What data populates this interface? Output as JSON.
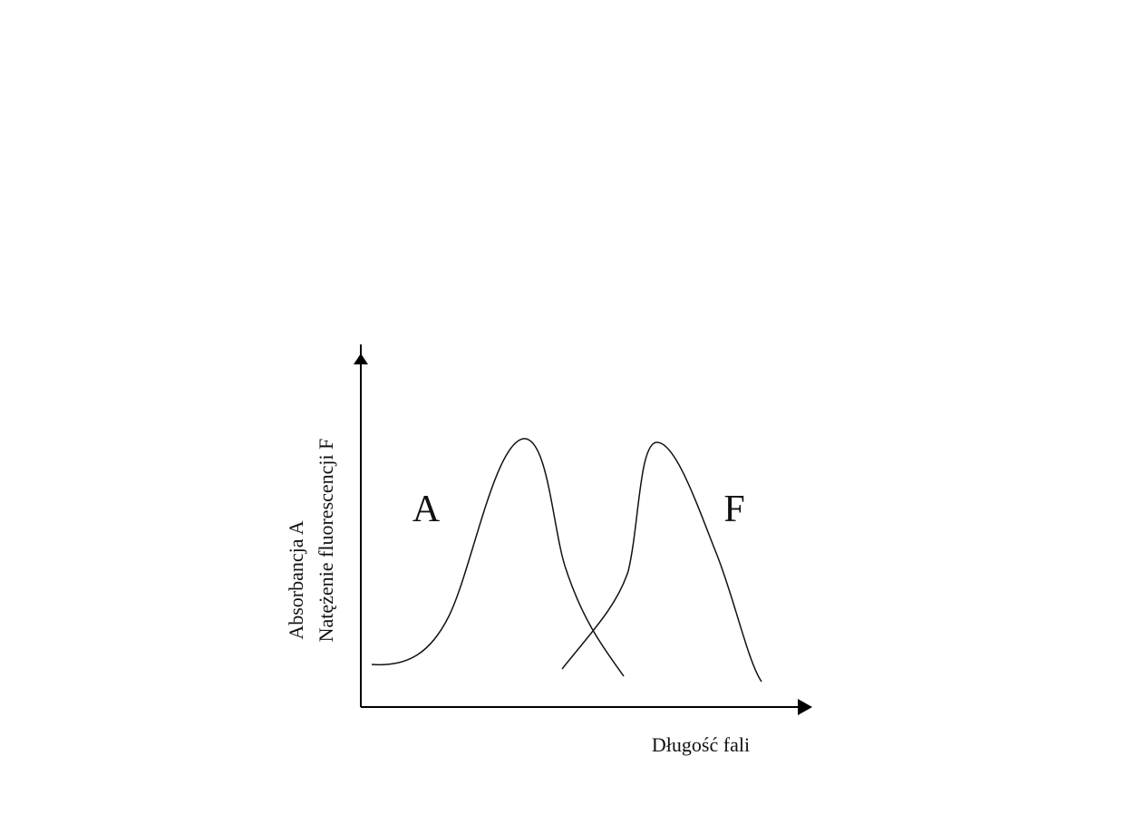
{
  "axes": {
    "y_label_lines": [
      "Absorbancja A",
      "Natężenie fluorescencji F"
    ],
    "x_label": "Długość fali"
  },
  "curves": [
    {
      "label": "A"
    },
    {
      "label": "F"
    }
  ]
}
